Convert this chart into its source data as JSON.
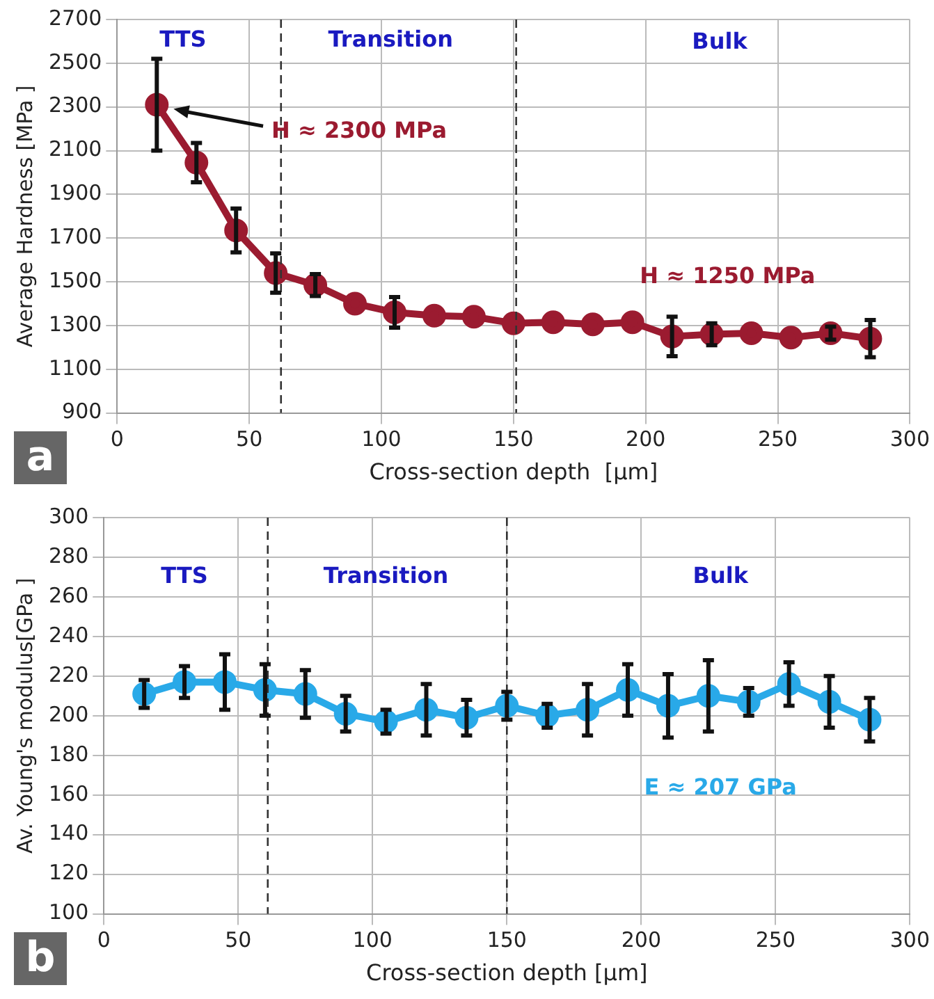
{
  "chart_data": [
    {
      "type": "line",
      "xlabel": "Cross-section depth  [µm]",
      "ylabel": "Average Hardness [MPa ]",
      "x": [
        15,
        30,
        45,
        60,
        75,
        90,
        105,
        120,
        135,
        150,
        165,
        180,
        195,
        210,
        225,
        240,
        255,
        270,
        285
      ],
      "series": [
        {
          "color": "#9b1b30",
          "values": [
            2310,
            2045,
            1735,
            1540,
            1485,
            1400,
            1360,
            1345,
            1340,
            1310,
            1315,
            1305,
            1315,
            1250,
            1260,
            1265,
            1245,
            1265,
            1240
          ],
          "errors": [
            210,
            90,
            100,
            90,
            50,
            null,
            70,
            null,
            null,
            null,
            null,
            null,
            null,
            90,
            50,
            null,
            null,
            30,
            85
          ]
        }
      ],
      "xlim": [
        0,
        300
      ],
      "xticks": [
        0,
        50,
        100,
        150,
        200,
        250,
        300
      ],
      "ylim": [
        900,
        2700
      ],
      "yticks": [
        900,
        1100,
        1300,
        1500,
        1700,
        1900,
        2100,
        2300,
        2500,
        2700
      ],
      "grid": true,
      "marker": "circle",
      "line_style": "solid",
      "ref_lines": [
        {
          "axis": "x",
          "value": 62,
          "color": "#333333",
          "line_style": "dashed"
        },
        {
          "axis": "x",
          "value": 151,
          "color": "#333333",
          "line_style": "dashed"
        }
      ],
      "annotations": [
        "a",
        "TTS",
        "Transition",
        "Bulk",
        "H ≈ 2300 MPa",
        "H ≈ 1250 MPa"
      ]
    },
    {
      "type": "line",
      "xlabel": "Cross-section depth [µm]",
      "ylabel": "Av. Young's modulus[GPa ]",
      "x": [
        15,
        30,
        45,
        60,
        75,
        90,
        105,
        120,
        135,
        150,
        165,
        180,
        195,
        210,
        225,
        240,
        255,
        270,
        285
      ],
      "series": [
        {
          "color": "#29a9e8",
          "values": [
            211,
            217,
            217,
            213,
            211,
            201,
            197,
            203,
            199,
            205,
            200,
            203,
            213,
            205,
            210,
            207,
            216,
            207,
            198
          ],
          "errors": [
            7,
            8,
            14,
            13,
            12,
            9,
            6,
            13,
            9,
            7,
            6,
            13,
            13,
            16,
            18,
            7,
            11,
            13,
            11
          ]
        }
      ],
      "xlim": [
        0,
        300
      ],
      "xticks": [
        0,
        50,
        100,
        150,
        200,
        250,
        300
      ],
      "ylim": [
        100,
        300
      ],
      "yticks": [
        100,
        120,
        140,
        160,
        180,
        200,
        220,
        240,
        260,
        280,
        300
      ],
      "grid": true,
      "marker": "circle",
      "line_style": "solid",
      "ref_lines": [
        {
          "axis": "x",
          "value": 61,
          "color": "#333333",
          "line_style": "dashed"
        },
        {
          "axis": "x",
          "value": 150,
          "color": "#333333",
          "line_style": "dashed"
        }
      ],
      "annotations": [
        "b",
        "TTS",
        "Transition",
        "Bulk",
        "E ≈ 207 GPa"
      ]
    }
  ]
}
